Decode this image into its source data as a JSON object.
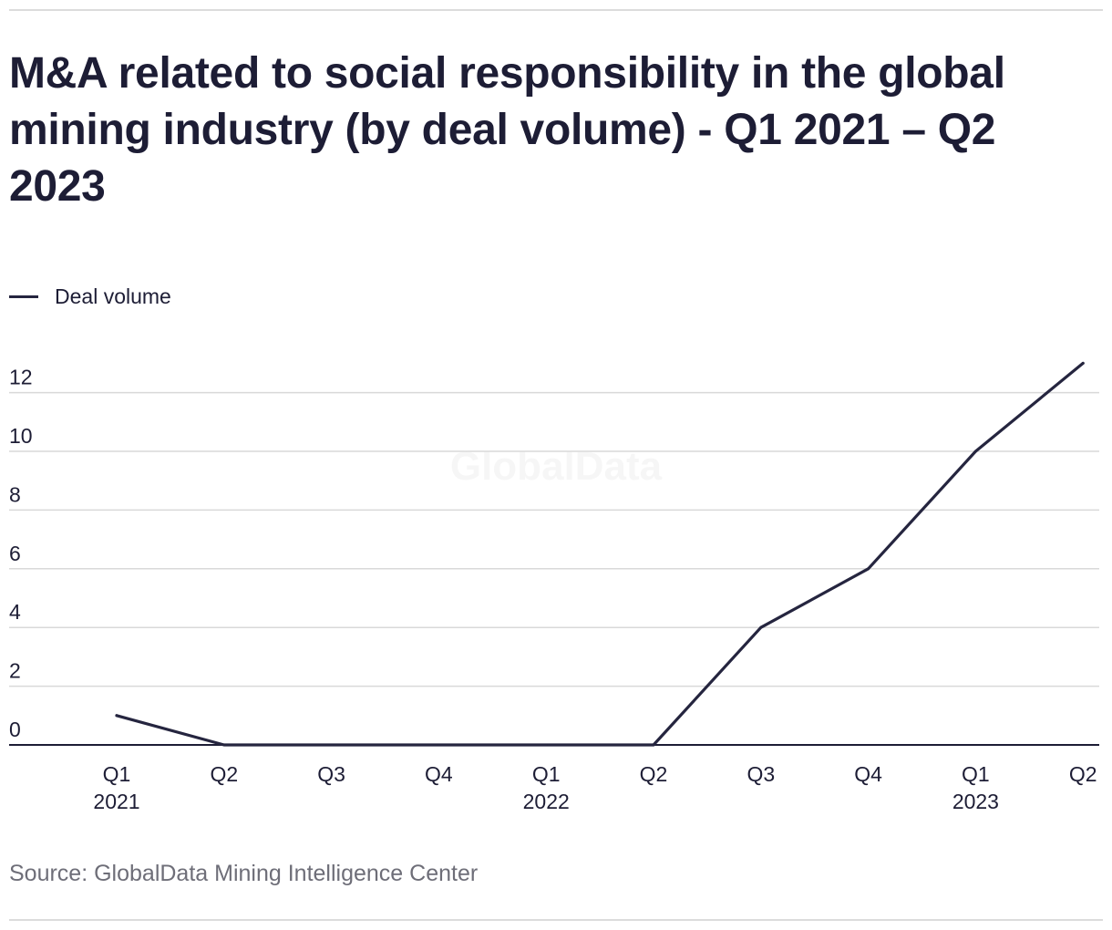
{
  "chart_data": {
    "type": "line",
    "title": "M&A related to social responsibility in the global mining industry (by deal volume) - Q1 2021 – Q2 2023",
    "categories": [
      "Q1",
      "Q2",
      "Q3",
      "Q4",
      "Q1",
      "Q2",
      "Q3",
      "Q4",
      "Q1",
      "Q2"
    ],
    "year_labels": [
      "2021",
      "",
      "",
      "",
      "2022",
      "",
      "",
      "",
      "2023",
      ""
    ],
    "series": [
      {
        "name": "Deal volume",
        "values": [
          1,
          0,
          0,
          0,
          0,
          0,
          4,
          6,
          10,
          13
        ],
        "color": "#25253f"
      }
    ],
    "y_ticks": [
      "0",
      "2",
      "4",
      "6",
      "8",
      "10",
      "12"
    ],
    "ylim": [
      0,
      13
    ],
    "xlabel": "",
    "ylabel": "",
    "grid": true,
    "legend_position": "top-left",
    "watermark": "GlobalData",
    "source": "Source: GlobalData Mining Intelligence Center"
  }
}
